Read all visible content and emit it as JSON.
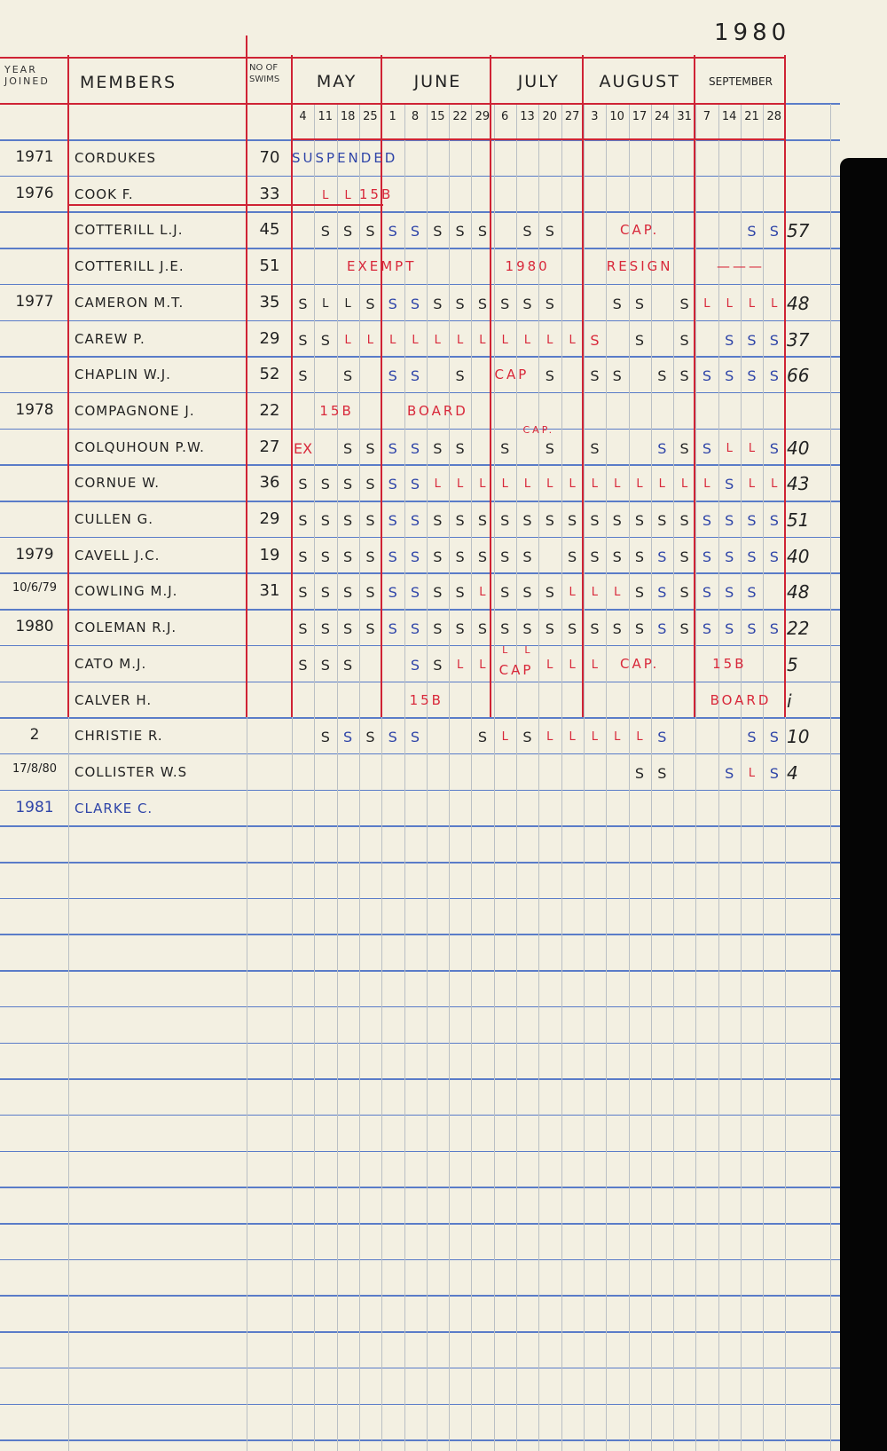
{
  "ledger_year": "1980",
  "inks": {
    "k": "#252525",
    "b": "#2f45a8",
    "r": "#d8283a"
  },
  "header": {
    "year_joined": "YEAR JOINED",
    "members": "MEMBERS",
    "swims": "No OF SWIMS",
    "months": [
      {
        "label": "MAY",
        "dates": [
          "4",
          "11",
          "18",
          "25"
        ]
      },
      {
        "label": "JUNE",
        "dates": [
          "1",
          "8",
          "15",
          "22",
          "29"
        ]
      },
      {
        "label": "JULY",
        "dates": [
          "6",
          "13",
          "20",
          "27"
        ]
      },
      {
        "label": "AUGUST",
        "dates": [
          "3",
          "10",
          "17",
          "24",
          "31"
        ]
      },
      {
        "label": "SEPTEMBER",
        "dates": [
          "7",
          "14",
          "21",
          "28"
        ]
      }
    ]
  },
  "rows": [
    {
      "year": "1971",
      "name": "CORDUKES",
      "swims": "70",
      "total": "",
      "marks": [
        "",
        "",
        "",
        "",
        "",
        "",
        "",
        "",
        "",
        "",
        "",
        "",
        "",
        "",
        "",
        "",
        "",
        "",
        "",
        "",
        "",
        ""
      ],
      "ink": "kkkkkkkkkkkkkkkkkkkkkk",
      "notes": [
        {
          "text": "SUSPENDED",
          "week": "May 4",
          "span": 4,
          "ink": "b"
        }
      ]
    },
    {
      "year": "1976",
      "name": "COOK F.",
      "swims": "33",
      "total": "",
      "underlined": true,
      "marks": [
        "",
        "L",
        "L",
        "",
        "",
        "",
        "",
        "",
        "",
        "",
        "",
        "",
        "",
        "",
        "",
        "",
        "",
        "",
        "",
        "",
        "",
        ""
      ],
      "ink": "rrrrkkkkkkkkkkkkkkkkkk",
      "notes": [
        {
          "text": "15B",
          "week": "May 25",
          "span": 1.4,
          "ink": "r"
        }
      ]
    },
    {
      "year": "",
      "name": "COTTERILL L.J.",
      "swims": "45",
      "total": "57",
      "marks": [
        "",
        "S",
        "S",
        "S",
        "S",
        "S",
        "S",
        "S",
        "S",
        "",
        "S",
        "S",
        "",
        "",
        "",
        "",
        "",
        "",
        "",
        "",
        "S",
        "S"
      ],
      "ink": "kkkkbbkkkkkkkkkkkkkkbb",
      "notes": [
        {
          "text": "CAP.",
          "week": "Aug 10",
          "span": 3,
          "ink": "r"
        }
      ]
    },
    {
      "year": "",
      "name": "COTTERILL J.E.",
      "swims": "51",
      "total": "",
      "marks": [
        "",
        "",
        "",
        "",
        "",
        "",
        "",
        "",
        "",
        "",
        "",
        "",
        "",
        "",
        "",
        "",
        "",
        "",
        "",
        "",
        "",
        ""
      ],
      "ink": "kkkkkkkkkkkkkkkkkkkkkk",
      "notes": [
        {
          "text": "EXEMPT",
          "week": "May 18",
          "span": 4,
          "ink": "r"
        },
        {
          "text": "1980",
          "week": "Jul 6",
          "span": 3,
          "ink": "r"
        },
        {
          "text": "RESIGN",
          "week": "Aug 3",
          "span": 5,
          "ink": "r"
        },
        {
          "text": "———",
          "week": "Sep 7",
          "span": 4,
          "ink": "r"
        }
      ]
    },
    {
      "year": "1977",
      "name": "CAMERON M.T.",
      "swims": "35",
      "total": "48",
      "marks": [
        "S",
        "L",
        "L",
        "S",
        "S",
        "S",
        "S",
        "S",
        "S",
        "S",
        "S",
        "S",
        "",
        "",
        "S",
        "S",
        "",
        "S",
        "L",
        "L",
        "L",
        "L"
      ],
      "ink": "kkkkbbkkkkkkkkkkkkrrrr",
      "notes": []
    },
    {
      "year": "",
      "name": "CAREW P.",
      "swims": "29",
      "total": "37",
      "marks": [
        "S",
        "S",
        "L",
        "L",
        "L",
        "L",
        "L",
        "L",
        "L",
        "L",
        "L",
        "L",
        "L",
        "S",
        "",
        "S",
        "",
        "S",
        "",
        "S",
        "S",
        "S"
      ],
      "ink": "kkrrrrrrrrrrrrkkkkkbbb",
      "notes": []
    },
    {
      "year": "",
      "name": "CHAPLIN W.J.",
      "swims": "52",
      "total": "66",
      "marks": [
        "S",
        "",
        "S",
        "",
        "S",
        "S",
        "",
        "S",
        "",
        "",
        "",
        "S",
        "",
        "S",
        "S",
        "",
        "S",
        "S",
        "S",
        "S",
        "S",
        "S"
      ],
      "ink": "kkkkbbkkkkkkkkkkkkbbbb",
      "notes": [
        {
          "text": "CAP",
          "week": "Jul 6",
          "span": 1.6,
          "ink": "r"
        }
      ]
    },
    {
      "year": "1978",
      "name": "COMPAGNONE J.",
      "swims": "22",
      "total": "",
      "marks": [
        "",
        "",
        "",
        "",
        "",
        "",
        "",
        "",
        "",
        "",
        "",
        "",
        "",
        "",
        "",
        "",
        "",
        "",
        "",
        "",
        "",
        ""
      ],
      "ink": "kkkkkkkkkkkkkkkkkkkkkk",
      "notes": [
        {
          "text": "15B",
          "week": "May 11",
          "span": 2,
          "ink": "r"
        },
        {
          "text": "BOARD",
          "week": "Jun 1",
          "span": 5,
          "ink": "r"
        }
      ]
    },
    {
      "year": "",
      "name": "COLQUHOUN P.W.",
      "swims": "27",
      "total": "40",
      "marks": [
        "EX",
        "",
        "S",
        "S",
        "S",
        "S",
        "S",
        "S",
        "",
        "S",
        "",
        "S",
        "",
        "S",
        "",
        "",
        "S",
        "S",
        "S",
        "L",
        "L",
        "S"
      ],
      "ink": "rkkkbbkkkkkkkkkkbkbrrb",
      "notes": [
        {
          "text": "CAP.",
          "week": "Jul 13",
          "span": 2,
          "ink": "r",
          "raised": true
        }
      ]
    },
    {
      "year": "",
      "name": "CORNUE W.",
      "swims": "36",
      "total": "43",
      "marks": [
        "S",
        "S",
        "S",
        "S",
        "S",
        "S",
        "L",
        "L",
        "L",
        "L",
        "L",
        "L",
        "L",
        "L",
        "L",
        "L",
        "L",
        "L",
        "L",
        "S",
        "L",
        "L"
      ],
      "ink": "kkkkbbrrrrrrrrrrrrrbrr",
      "notes": []
    },
    {
      "year": "",
      "name": "CULLEN G.",
      "swims": "29",
      "total": "51",
      "marks": [
        "S",
        "S",
        "S",
        "S",
        "S",
        "S",
        "S",
        "S",
        "S",
        "S",
        "S",
        "S",
        "S",
        "S",
        "S",
        "S",
        "S",
        "S",
        "S",
        "S",
        "S",
        "S"
      ],
      "ink": "kkkkbbkkkkkkkkkkkkbbbb",
      "notes": []
    },
    {
      "year": "1979",
      "name": "CAVELL J.C.",
      "swims": "19",
      "total": "40",
      "marks": [
        "S",
        "S",
        "S",
        "S",
        "S",
        "S",
        "S",
        "S",
        "S",
        "S",
        "S",
        "",
        "S",
        "S",
        "S",
        "S",
        "S",
        "S",
        "S",
        "S",
        "S",
        "S"
      ],
      "ink": "kkkkbbkkkkkkkkkkbkbbbb",
      "notes": []
    },
    {
      "year": "10/6/79",
      "name": "COWLING M.J.",
      "swims": "31",
      "total": "48",
      "marks": [
        "S",
        "S",
        "S",
        "S",
        "S",
        "S",
        "S",
        "S",
        "L",
        "S",
        "S",
        "S",
        "L",
        "L",
        "L",
        "S",
        "S",
        "S",
        "S",
        "S",
        "S",
        ""
      ],
      "ink": "kkkkbbkkrkkkrrrkbkbbbk",
      "notes": []
    },
    {
      "year": "1980",
      "name": "COLEMAN R.J.",
      "swims": "",
      "total": "22",
      "marks": [
        "S",
        "S",
        "S",
        "S",
        "S",
        "S",
        "S",
        "S",
        "S",
        "S",
        "S",
        "S",
        "S",
        "S",
        "S",
        "S",
        "S",
        "S",
        "S",
        "S",
        "S",
        "S"
      ],
      "ink": "kkkkbbkkkkkkkkkkbkbbbb",
      "notes": []
    },
    {
      "year": "",
      "name": "CATO M.J.",
      "swims": "",
      "total": "5",
      "marks": [
        "S",
        "S",
        "S",
        "",
        "",
        "S",
        "S",
        "L",
        "L",
        "L",
        "L",
        "L",
        "L",
        "L",
        "",
        "",
        "",
        "",
        "",
        "",
        "",
        ""
      ],
      "ink": "kkkkkbkrrrrrrrkkkkkkkk",
      "notes": [
        {
          "text": "CAP",
          "week": "Jul 6",
          "span": 2,
          "ink": "r"
        },
        {
          "text": "CAP.",
          "week": "Aug 10",
          "span": 3,
          "ink": "r"
        },
        {
          "text": "15B",
          "week": "Sep 7",
          "span": 3,
          "ink": "r"
        }
      ]
    },
    {
      "year": "",
      "name": "CALVER H.",
      "swims": "",
      "total": "i",
      "marks": [
        "",
        "",
        "",
        "",
        "",
        "",
        "",
        "",
        "",
        "",
        "",
        "",
        "",
        "",
        "",
        "",
        "",
        "",
        "",
        "",
        "",
        ""
      ],
      "ink": "kkkkkkkkkkkkkkkkkkkkkk",
      "notes": [
        {
          "text": "15B",
          "week": "Jun 8",
          "span": 2,
          "ink": "r"
        },
        {
          "text": "BOARD",
          "week": "Sep 7",
          "span": 4,
          "ink": "r"
        }
      ]
    },
    {
      "year": "2",
      "name": "CHRISTIE R.",
      "swims": "",
      "total": "10",
      "marks": [
        "",
        "S",
        "S",
        "S",
        "S",
        "S",
        "",
        "",
        "S",
        "L",
        "S",
        "L",
        "L",
        "L",
        "L",
        "L",
        "S",
        "",
        "",
        "",
        "S",
        "S"
      ],
      "ink": "kkbkbbkkkrkrrrrrbkkkbb",
      "notes": []
    },
    {
      "year": "17/8/80",
      "name": "COLLISTER W.S",
      "swims": "",
      "total": "4",
      "marks": [
        "",
        "",
        "",
        "",
        "",
        "",
        "",
        "",
        "",
        "",
        "",
        "",
        "",
        "",
        "",
        "S",
        "S",
        "",
        "",
        "S",
        "L",
        "S"
      ],
      "ink": "kkkkkkkkkkkkkkkkkkkbrb",
      "notes": []
    },
    {
      "year": "1981",
      "name": "CLARKE C.",
      "swims": "",
      "total": "",
      "name_ink": "b",
      "marks": [
        "",
        "",
        "",
        "",
        "",
        "",
        "",
        "",
        "",
        "",
        "",
        "",
        "",
        "",
        "",
        "",
        "",
        "",
        "",
        "",
        "",
        ""
      ],
      "ink": "kkkkkkkkkkkkkkkkkkkkkk",
      "notes": []
    }
  ]
}
